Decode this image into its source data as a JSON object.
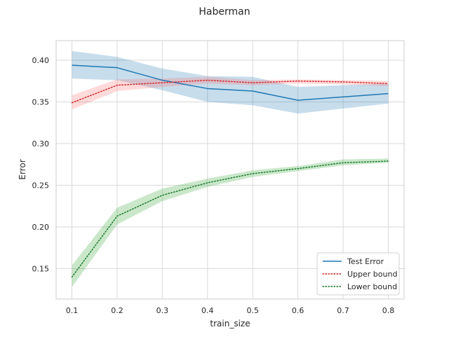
{
  "chart_data": {
    "type": "line",
    "title": "Haberman",
    "xlabel": "train_size",
    "ylabel": "Error",
    "xlim": [
      0.065,
      0.835
    ],
    "ylim": [
      0.1135,
      0.4235
    ],
    "xticks": [
      0.1,
      0.2,
      0.3,
      0.4,
      0.5,
      0.6,
      0.7,
      0.8
    ],
    "yticks": [
      0.15,
      0.2,
      0.25,
      0.3,
      0.35,
      0.4
    ],
    "grid": true,
    "legend_position": "lower-right",
    "x": [
      0.1,
      0.2,
      0.3,
      0.4,
      0.5,
      0.6,
      0.7,
      0.8
    ],
    "series": [
      {
        "name": "Test Error",
        "style": "solid",
        "color": "#1f77b4",
        "band_color": "#1f77b4",
        "values": [
          0.394,
          0.391,
          0.376,
          0.366,
          0.363,
          0.352,
          0.356,
          0.36
        ],
        "lower": [
          0.378,
          0.376,
          0.364,
          0.35,
          0.346,
          0.336,
          0.342,
          0.348
        ],
        "upper": [
          0.411,
          0.404,
          0.39,
          0.381,
          0.38,
          0.368,
          0.37,
          0.372
        ]
      },
      {
        "name": "Upper bound",
        "style": "dotted",
        "color": "#d62728",
        "band_color": "#ff6b6b",
        "values": [
          0.349,
          0.37,
          0.373,
          0.376,
          0.373,
          0.375,
          0.374,
          0.372
        ],
        "lower": [
          0.341,
          0.363,
          0.368,
          0.372,
          0.37,
          0.372,
          0.371,
          0.369
        ],
        "upper": [
          0.358,
          0.377,
          0.378,
          0.38,
          0.376,
          0.377,
          0.376,
          0.375
        ]
      },
      {
        "name": "Lower bound",
        "style": "dotted",
        "color": "#1a7a2b",
        "band_color": "#2ca02c",
        "values": [
          0.14,
          0.213,
          0.238,
          0.253,
          0.264,
          0.27,
          0.277,
          0.279
        ],
        "lower": [
          0.128,
          0.203,
          0.231,
          0.248,
          0.26,
          0.267,
          0.274,
          0.277
        ],
        "upper": [
          0.154,
          0.223,
          0.246,
          0.258,
          0.268,
          0.273,
          0.281,
          0.282
        ]
      }
    ]
  }
}
